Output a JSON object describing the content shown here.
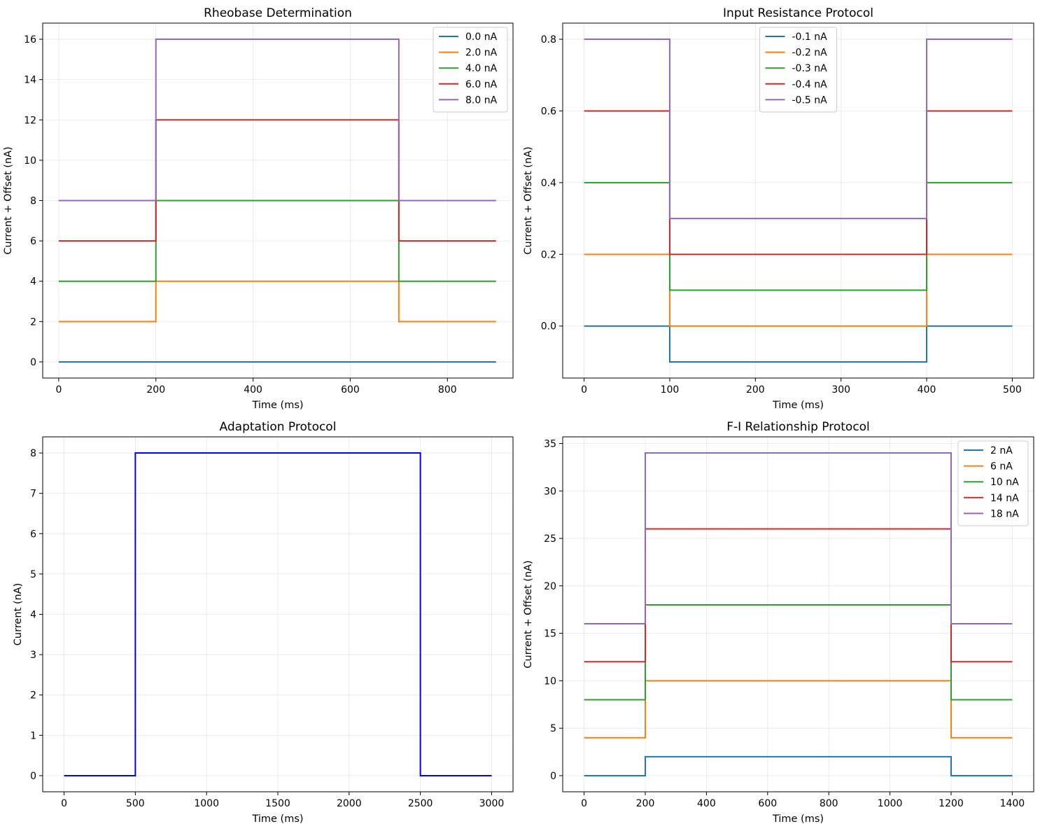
{
  "charts": [
    {
      "type": "line",
      "title": "Rheobase Determination",
      "xlabel": "Time (ms)",
      "ylabel": "Current + Offset (nA)",
      "xlim": [
        -33,
        935
      ],
      "ylim": [
        -0.8,
        16.8
      ],
      "xticks": [
        0,
        200,
        400,
        600,
        800
      ],
      "yticks": [
        0,
        2,
        4,
        6,
        8,
        10,
        12,
        14,
        16
      ],
      "legend": "top-right",
      "grid": true,
      "series": [
        {
          "name": "0.0 nA",
          "color": "#1f77b4",
          "x": [
            0,
            200,
            200,
            700,
            700,
            900
          ],
          "y": [
            0,
            0,
            0,
            0,
            0,
            0
          ]
        },
        {
          "name": "2.0 nA",
          "color": "#ff7f0e",
          "x": [
            0,
            200,
            200,
            700,
            700,
            900
          ],
          "y": [
            2,
            2,
            4,
            4,
            2,
            2
          ]
        },
        {
          "name": "4.0 nA",
          "color": "#2ca02c",
          "x": [
            0,
            200,
            200,
            700,
            700,
            900
          ],
          "y": [
            4,
            4,
            8,
            8,
            4,
            4
          ]
        },
        {
          "name": "6.0 nA",
          "color": "#d62728",
          "x": [
            0,
            200,
            200,
            700,
            700,
            900
          ],
          "y": [
            6,
            6,
            12,
            12,
            6,
            6
          ]
        },
        {
          "name": "8.0 nA",
          "color": "#9467bd",
          "x": [
            0,
            200,
            200,
            700,
            700,
            900
          ],
          "y": [
            8,
            8,
            16,
            16,
            8,
            8
          ]
        }
      ]
    },
    {
      "type": "line",
      "title": "Input Resistance Protocol",
      "xlabel": "Time (ms)",
      "ylabel": "Current + Offset (nA)",
      "xlim": [
        -25,
        525
      ],
      "ylim": [
        -0.145,
        0.845
      ],
      "xticks": [
        0,
        100,
        200,
        300,
        400,
        500
      ],
      "yticks": [
        0.0,
        0.2,
        0.4,
        0.6,
        0.8
      ],
      "ytick_labels": [
        "0.0",
        "0.2",
        "0.4",
        "0.6",
        "0.8"
      ],
      "legend": "upper-center",
      "grid": true,
      "series": [
        {
          "name": "-0.1 nA",
          "color": "#1f77b4",
          "x": [
            0,
            100,
            100,
            400,
            400,
            500
          ],
          "y": [
            0,
            0,
            -0.1,
            -0.1,
            0,
            0
          ]
        },
        {
          "name": "-0.2 nA",
          "color": "#ff7f0e",
          "x": [
            0,
            100,
            100,
            400,
            400,
            500
          ],
          "y": [
            0.2,
            0.2,
            0,
            0,
            0.2,
            0.2
          ]
        },
        {
          "name": "-0.3 nA",
          "color": "#2ca02c",
          "x": [
            0,
            100,
            100,
            400,
            400,
            500
          ],
          "y": [
            0.4,
            0.4,
            0.1,
            0.1,
            0.4,
            0.4
          ]
        },
        {
          "name": "-0.4 nA",
          "color": "#d62728",
          "x": [
            0,
            100,
            100,
            400,
            400,
            500
          ],
          "y": [
            0.6,
            0.6,
            0.2,
            0.2,
            0.6,
            0.6
          ]
        },
        {
          "name": "-0.5 nA",
          "color": "#9467bd",
          "x": [
            0,
            100,
            100,
            400,
            400,
            500
          ],
          "y": [
            0.8,
            0.8,
            0.3,
            0.3,
            0.8,
            0.8
          ]
        }
      ]
    },
    {
      "type": "line",
      "title": "Adaptation Protocol",
      "xlabel": "Time (ms)",
      "ylabel": "Current (nA)",
      "xlim": [
        -150,
        3150
      ],
      "ylim": [
        -0.4,
        8.4
      ],
      "xticks": [
        0,
        500,
        1000,
        1500,
        2000,
        2500,
        3000
      ],
      "yticks": [
        0,
        1,
        2,
        3,
        4,
        5,
        6,
        7,
        8
      ],
      "legend": "none",
      "grid": true,
      "series": [
        {
          "name": "",
          "color": "#0000ff",
          "x": [
            0,
            500,
            500,
            2500,
            2500,
            3000
          ],
          "y": [
            0,
            0,
            8,
            8,
            0,
            0
          ]
        }
      ]
    },
    {
      "type": "line",
      "title": "F-I Relationship Protocol",
      "xlabel": "Time (ms)",
      "ylabel": "Current + Offset (nA)",
      "xlim": [
        -70,
        1470
      ],
      "ylim": [
        -1.7,
        35.7
      ],
      "xticks": [
        0,
        200,
        400,
        600,
        800,
        1000,
        1200,
        1400
      ],
      "yticks": [
        0,
        5,
        10,
        15,
        20,
        25,
        30,
        35
      ],
      "legend": "top-right",
      "grid": true,
      "series": [
        {
          "name": "2 nA",
          "color": "#1f77b4",
          "x": [
            0,
            200,
            200,
            1200,
            1200,
            1400
          ],
          "y": [
            0,
            0,
            2,
            2,
            0,
            0
          ]
        },
        {
          "name": "6 nA",
          "color": "#ff7f0e",
          "x": [
            0,
            200,
            200,
            1200,
            1200,
            1400
          ],
          "y": [
            4,
            4,
            10,
            10,
            4,
            4
          ]
        },
        {
          "name": "10 nA",
          "color": "#2ca02c",
          "x": [
            0,
            200,
            200,
            1200,
            1200,
            1400
          ],
          "y": [
            8,
            8,
            18,
            18,
            8,
            8
          ]
        },
        {
          "name": "14 nA",
          "color": "#d62728",
          "x": [
            0,
            200,
            200,
            1200,
            1200,
            1400
          ],
          "y": [
            12,
            12,
            26,
            26,
            12,
            12
          ]
        },
        {
          "name": "18 nA",
          "color": "#9467bd",
          "x": [
            0,
            200,
            200,
            1200,
            1200,
            1400
          ],
          "y": [
            16,
            16,
            34,
            34,
            16,
            16
          ]
        }
      ]
    }
  ]
}
